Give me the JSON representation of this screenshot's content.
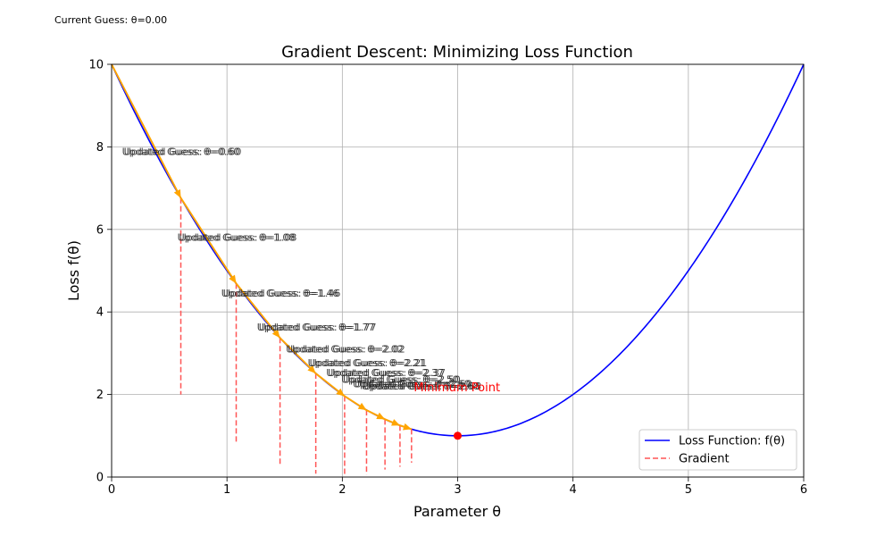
{
  "corner_text": "Current Guess: θ=0.00",
  "chart_data": {
    "type": "line",
    "title": "Gradient Descent: Minimizing Loss Function",
    "xlabel": "Parameter θ",
    "ylabel": "Loss f(θ)",
    "xlim": [
      0,
      6
    ],
    "ylim": [
      0,
      10
    ],
    "xticks": [
      0,
      1,
      2,
      3,
      4,
      5,
      6
    ],
    "yticks": [
      0,
      2,
      4,
      6,
      8,
      10
    ],
    "grid": true,
    "legend": {
      "placement": "lower-right",
      "entries": [
        "Loss Function: f(θ)",
        "Gradient"
      ]
    },
    "series": [
      {
        "name": "Loss Function: f(θ)",
        "function": "(θ-3)^2+1",
        "color": "#0000ff",
        "style": "solid"
      },
      {
        "name": "Gradient",
        "color": "#ff5555",
        "style": "dashed"
      }
    ],
    "descent_steps": [
      {
        "theta": 0.0,
        "loss": 10.0
      },
      {
        "theta": 0.6,
        "loss": 6.76
      },
      {
        "theta": 1.08,
        "loss": 4.69
      },
      {
        "theta": 1.46,
        "loss": 3.37
      },
      {
        "theta": 1.77,
        "loss": 2.51
      },
      {
        "theta": 2.02,
        "loss": 1.96
      },
      {
        "theta": 2.21,
        "loss": 1.62
      },
      {
        "theta": 2.37,
        "loss": 1.4
      },
      {
        "theta": 2.5,
        "loss": 1.25
      },
      {
        "theta": 2.6,
        "loss": 1.16
      }
    ],
    "update_labels": [
      {
        "text": "Updated Guess: θ=0.60",
        "x": 0.6,
        "y": 7.8
      },
      {
        "text": "Updated Guess: θ=1.08",
        "x": 1.08,
        "y": 5.72
      },
      {
        "text": "Updated Guess: θ=1.46",
        "x": 1.46,
        "y": 4.37
      },
      {
        "text": "Updated Guess: θ=1.77",
        "x": 1.77,
        "y": 3.55
      },
      {
        "text": "Updated Guess: θ=2.02",
        "x": 2.02,
        "y": 3.02
      },
      {
        "text": "Updated Guess: θ=2.21",
        "x": 2.21,
        "y": 2.68
      },
      {
        "text": "Updated Guess: θ=2.37",
        "x": 2.37,
        "y": 2.45
      },
      {
        "text": "Updated Guess: θ=2.50",
        "x": 2.5,
        "y": 2.28
      },
      {
        "text": "Updated Guess: θ=2.60",
        "x": 2.6,
        "y": 2.18
      },
      {
        "text": "Updated Guess: θ=2.68",
        "x": 2.68,
        "y": 2.12
      }
    ],
    "gradient_lines": [
      {
        "x": 0.6,
        "y_top": 6.76,
        "y_bottom": 2.0
      },
      {
        "x": 1.08,
        "y_top": 4.69,
        "y_bottom": 0.85
      },
      {
        "x": 1.46,
        "y_top": 3.37,
        "y_bottom": 0.32
      },
      {
        "x": 1.77,
        "y_top": 2.51,
        "y_bottom": 0.08
      },
      {
        "x": 2.02,
        "y_top": 1.96,
        "y_bottom": 0.06
      },
      {
        "x": 2.21,
        "y_top": 1.62,
        "y_bottom": 0.06
      },
      {
        "x": 2.37,
        "y_top": 1.4,
        "y_bottom": 0.18
      },
      {
        "x": 2.5,
        "y_top": 1.25,
        "y_bottom": 0.25
      },
      {
        "x": 2.6,
        "y_top": 1.16,
        "y_bottom": 0.35
      }
    ],
    "minimum_point": {
      "x": 3,
      "y": 1,
      "label": "Minimum Point",
      "label_x": 2.62,
      "label_y": 2.08
    },
    "colors": {
      "curve": "#0000ff",
      "steps": "#ffa500",
      "gradient": "#ff5555",
      "minimum": "#ff0000",
      "grid": "#b0b0b0"
    }
  }
}
